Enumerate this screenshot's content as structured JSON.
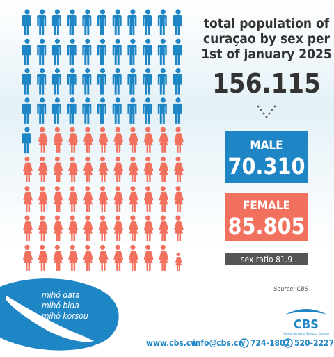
{
  "title": [
    "total population of",
    "curaçao by sex per",
    "1st of january 2025"
  ],
  "total": "156.115",
  "male": {
    "label": "MALE",
    "value": "70.310"
  },
  "female": {
    "label": "FEMALE",
    "value": "85.805"
  },
  "sex_ratio": "sex ratio 81.9",
  "source": "Source: CBS",
  "slogan": [
    "mihó data",
    "mihó bida",
    "mihó kòrsou"
  ],
  "logo": {
    "name": "CBS",
    "subtitle": "Central Bureau of Statistics Curaçao"
  },
  "footer": {
    "website": "www.cbs.cw",
    "email": "info@cbs.cw",
    "phone": "724-1802",
    "whatsapp": "520-2227"
  }
}
